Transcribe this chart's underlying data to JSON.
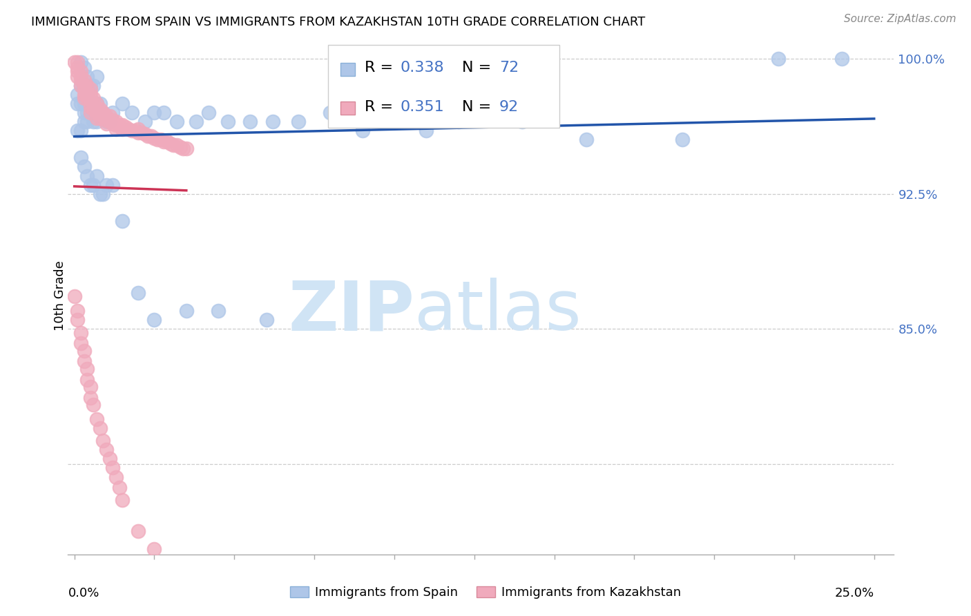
{
  "title": "IMMIGRANTS FROM SPAIN VS IMMIGRANTS FROM KAZAKHSTAN 10TH GRADE CORRELATION CHART",
  "source": "Source: ZipAtlas.com",
  "ylabel": "10th Grade",
  "legend_spain_r": "R = 0.338",
  "legend_spain_n": "N = 72",
  "legend_kaz_r": "R = 0.351",
  "legend_kaz_n": "N = 92",
  "spain_color": "#aec6e8",
  "kaz_color": "#f0aabc",
  "spain_line_color": "#2255aa",
  "kaz_line_color": "#cc3355",
  "watermark_zip": "ZIP",
  "watermark_atlas": "atlas",
  "watermark_color": "#d0e4f5",
  "ytick_vals": [
    0.775,
    0.8,
    0.825,
    0.85,
    0.875,
    0.9,
    0.925,
    0.95,
    0.975,
    1.0
  ],
  "ytick_labels_right": [
    "",
    "",
    "",
    "85.0%",
    "",
    "",
    "92.5%",
    "",
    "",
    "100.0%"
  ],
  "ylim": [
    0.725,
    1.012
  ],
  "xlim": [
    -0.002,
    0.256
  ],
  "right_axis_color": "#4472C4",
  "grid_color": "#cccccc",
  "spain_scatter_x": [
    0.002,
    0.003,
    0.004,
    0.005,
    0.006,
    0.007,
    0.001,
    0.002,
    0.003,
    0.004,
    0.005,
    0.006,
    0.007,
    0.008,
    0.009,
    0.01,
    0.011,
    0.012,
    0.001,
    0.002,
    0.003,
    0.003,
    0.004,
    0.005,
    0.006,
    0.007,
    0.008,
    0.001,
    0.002,
    0.003,
    0.004,
    0.005,
    0.006,
    0.007,
    0.015,
    0.018,
    0.022,
    0.025,
    0.028,
    0.032,
    0.038,
    0.042,
    0.048,
    0.055,
    0.062,
    0.07,
    0.08,
    0.09,
    0.1,
    0.11,
    0.12,
    0.14,
    0.16,
    0.19,
    0.22,
    0.24,
    0.002,
    0.003,
    0.004,
    0.005,
    0.006,
    0.007,
    0.008,
    0.009,
    0.01,
    0.012,
    0.015,
    0.02,
    0.025,
    0.035,
    0.045,
    0.06
  ],
  "spain_scatter_y": [
    0.998,
    0.995,
    0.99,
    0.985,
    0.985,
    0.99,
    0.975,
    0.975,
    0.975,
    0.97,
    0.97,
    0.965,
    0.965,
    0.97,
    0.97,
    0.965,
    0.965,
    0.97,
    0.96,
    0.96,
    0.965,
    0.97,
    0.965,
    0.975,
    0.97,
    0.975,
    0.975,
    0.98,
    0.985,
    0.985,
    0.98,
    0.975,
    0.97,
    0.975,
    0.975,
    0.97,
    0.965,
    0.97,
    0.97,
    0.965,
    0.965,
    0.97,
    0.965,
    0.965,
    0.965,
    0.965,
    0.97,
    0.96,
    0.965,
    0.96,
    0.965,
    0.965,
    0.955,
    0.955,
    1.0,
    1.0,
    0.945,
    0.94,
    0.935,
    0.93,
    0.93,
    0.935,
    0.925,
    0.925,
    0.93,
    0.93,
    0.91,
    0.87,
    0.855,
    0.86,
    0.86,
    0.855
  ],
  "kaz_scatter_x": [
    0.0,
    0.001,
    0.001,
    0.001,
    0.001,
    0.002,
    0.002,
    0.002,
    0.002,
    0.003,
    0.003,
    0.003,
    0.003,
    0.003,
    0.004,
    0.004,
    0.004,
    0.005,
    0.005,
    0.005,
    0.005,
    0.005,
    0.005,
    0.006,
    0.006,
    0.006,
    0.007,
    0.007,
    0.007,
    0.007,
    0.008,
    0.008,
    0.008,
    0.009,
    0.009,
    0.01,
    0.01,
    0.01,
    0.011,
    0.011,
    0.012,
    0.012,
    0.013,
    0.013,
    0.013,
    0.014,
    0.015,
    0.015,
    0.016,
    0.017,
    0.018,
    0.019,
    0.02,
    0.02,
    0.021,
    0.022,
    0.023,
    0.024,
    0.025,
    0.026,
    0.027,
    0.028,
    0.029,
    0.03,
    0.031,
    0.032,
    0.033,
    0.034,
    0.035,
    0.0,
    0.001,
    0.001,
    0.002,
    0.002,
    0.003,
    0.003,
    0.004,
    0.004,
    0.005,
    0.005,
    0.006,
    0.007,
    0.008,
    0.009,
    0.01,
    0.011,
    0.012,
    0.013,
    0.014,
    0.015,
    0.02,
    0.025
  ],
  "kaz_scatter_y": [
    0.998,
    0.998,
    0.995,
    0.993,
    0.99,
    0.993,
    0.99,
    0.988,
    0.985,
    0.988,
    0.985,
    0.983,
    0.98,
    0.978,
    0.985,
    0.98,
    0.978,
    0.983,
    0.98,
    0.978,
    0.975,
    0.973,
    0.97,
    0.978,
    0.975,
    0.972,
    0.975,
    0.972,
    0.97,
    0.967,
    0.972,
    0.97,
    0.967,
    0.97,
    0.968,
    0.968,
    0.966,
    0.964,
    0.968,
    0.965,
    0.966,
    0.964,
    0.965,
    0.963,
    0.961,
    0.963,
    0.963,
    0.961,
    0.962,
    0.961,
    0.96,
    0.96,
    0.961,
    0.959,
    0.959,
    0.958,
    0.957,
    0.957,
    0.956,
    0.955,
    0.955,
    0.954,
    0.954,
    0.953,
    0.952,
    0.952,
    0.951,
    0.95,
    0.95,
    0.868,
    0.86,
    0.855,
    0.848,
    0.842,
    0.838,
    0.832,
    0.828,
    0.822,
    0.818,
    0.812,
    0.808,
    0.8,
    0.795,
    0.788,
    0.783,
    0.778,
    0.773,
    0.768,
    0.762,
    0.755,
    0.738,
    0.728
  ]
}
